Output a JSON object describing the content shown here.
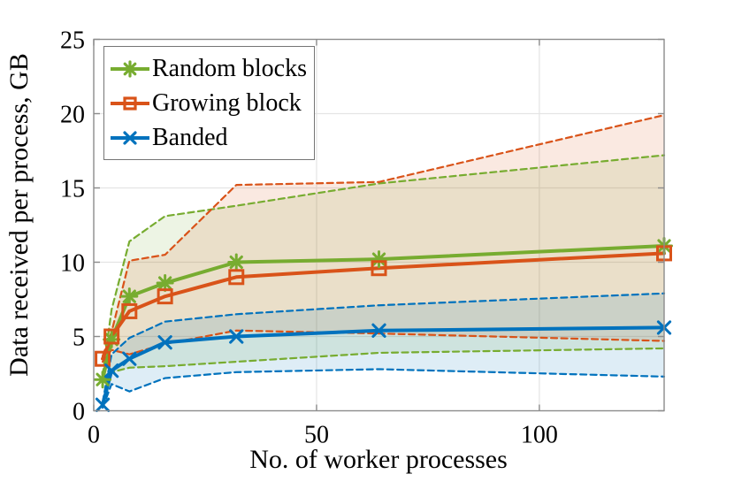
{
  "figure": {
    "background": "#ffffff",
    "axis_color": "#8c8c8c",
    "grid_color": "#e4e4e4",
    "text_color": "#000000"
  },
  "chart_data": {
    "type": "line",
    "title": "",
    "xlabel": "No. of worker processes",
    "ylabel": "Data received per process, GB",
    "xlim": [
      0,
      128
    ],
    "ylim": [
      0,
      25
    ],
    "xticks": [
      0,
      50,
      100
    ],
    "yticks": [
      0,
      5,
      10,
      15,
      20,
      25
    ],
    "grid": true,
    "legend_position": "top-left",
    "x": [
      2,
      4,
      8,
      16,
      32,
      64,
      128
    ],
    "series": [
      {
        "name": "Random blocks",
        "color": "#77AC30",
        "marker": "asterisk",
        "values": [
          2.1,
          4.8,
          7.7,
          8.6,
          10.0,
          10.2,
          11.1
        ],
        "band_upper": [
          2.4,
          6.8,
          11.4,
          13.1,
          13.8,
          15.3,
          17.2
        ],
        "band_lower": [
          1.9,
          2.6,
          2.9,
          3.0,
          3.3,
          3.9,
          4.2
        ]
      },
      {
        "name": "Growing block",
        "color": "#D95319",
        "marker": "square",
        "values": [
          3.5,
          5.0,
          6.7,
          7.7,
          9.0,
          9.6,
          10.6
        ],
        "band_upper": [
          3.7,
          5.3,
          10.1,
          10.5,
          15.2,
          15.4,
          19.9
        ],
        "band_lower": [
          3.3,
          4.1,
          3.8,
          4.5,
          5.4,
          5.2,
          4.7
        ]
      },
      {
        "name": "Banded",
        "color": "#0072BD",
        "marker": "x",
        "values": [
          0.4,
          2.7,
          3.5,
          4.6,
          5.0,
          5.4,
          5.6
        ],
        "band_upper": [
          0.6,
          3.8,
          4.9,
          6.0,
          6.5,
          7.1,
          7.9
        ],
        "band_lower": [
          0.2,
          1.8,
          1.3,
          2.2,
          2.6,
          2.8,
          2.3
        ]
      }
    ]
  }
}
